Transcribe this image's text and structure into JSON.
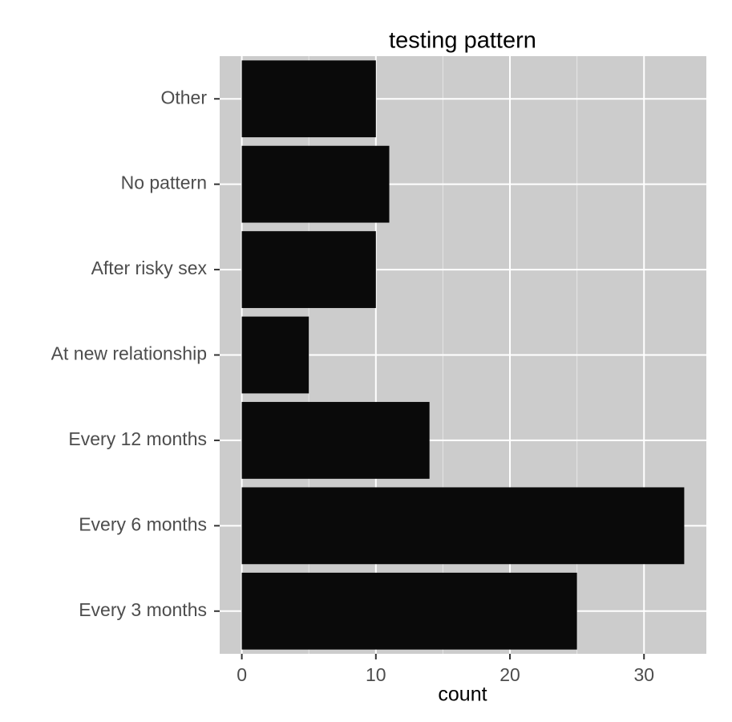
{
  "chart_data": {
    "type": "barh",
    "title": "testing pattern",
    "x_label": "count",
    "categories": [
      "Other",
      "No pattern",
      "After risky sex",
      "At new relationship",
      "Every 12 months",
      "Every 6 months",
      "Every 3 months"
    ],
    "values": [
      10,
      11,
      10,
      5,
      14,
      33,
      25
    ],
    "color": "#0a0a0a",
    "xlim": [
      -1.65,
      34.65
    ],
    "xticks": [
      0,
      10,
      20,
      30
    ],
    "xminor": [
      5,
      15,
      25
    ],
    "grid": true
  }
}
